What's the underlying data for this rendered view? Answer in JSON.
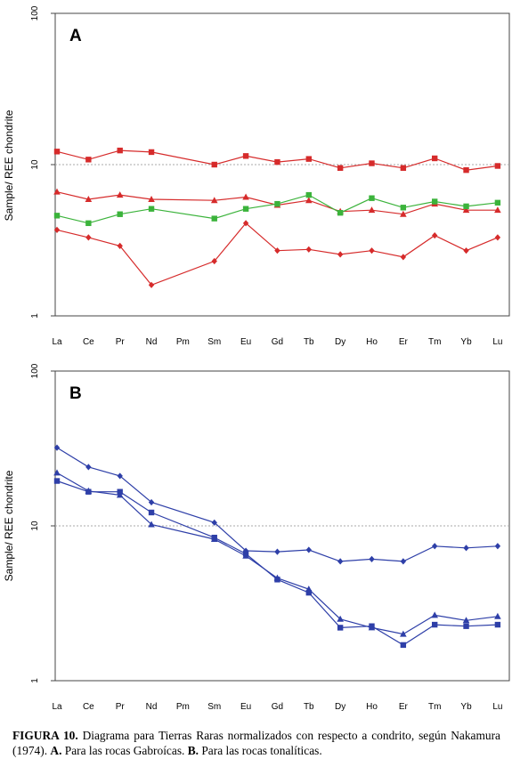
{
  "chart_data": [
    {
      "type": "line",
      "title": "A",
      "ylabel": "Sample/ REE chondrite",
      "yscale": "log",
      "ylim": [
        1,
        100
      ],
      "ytick_labels": [
        "1",
        "10",
        "100"
      ],
      "grid": "dotted line at 10",
      "categories": [
        "La",
        "Ce",
        "Pr",
        "Nd",
        "Pm",
        "Sm",
        "Eu",
        "Gd",
        "Tb",
        "Dy",
        "Ho",
        "Er",
        "Tm",
        "Yb",
        "Lu"
      ],
      "series": [
        {
          "color": "#d62b2b",
          "marker": "square",
          "values": [
            12.2,
            10.8,
            12.4,
            12.1,
            null,
            10.0,
            11.4,
            10.4,
            10.9,
            9.5,
            10.2,
            9.5,
            11.0,
            9.2,
            9.8
          ]
        },
        {
          "color": "#d62b2b",
          "marker": "triangle",
          "values": [
            6.6,
            5.9,
            6.3,
            5.9,
            null,
            5.8,
            6.1,
            5.4,
            5.8,
            4.9,
            5.0,
            4.7,
            5.5,
            5.0,
            5.0
          ]
        },
        {
          "color": "#3bb33b",
          "marker": "square",
          "values": [
            4.6,
            4.1,
            4.7,
            5.1,
            null,
            4.4,
            5.1,
            5.5,
            6.3,
            4.8,
            6.0,
            5.2,
            5.7,
            5.3,
            5.6
          ]
        },
        {
          "color": "#d62b2b",
          "marker": "diamond",
          "values": [
            3.7,
            3.3,
            2.9,
            1.6,
            null,
            2.3,
            4.1,
            2.7,
            2.75,
            2.55,
            2.7,
            2.45,
            3.4,
            2.7,
            3.3
          ]
        }
      ]
    },
    {
      "type": "line",
      "title": "B",
      "ylabel": "Sample/ REE chondrite",
      "yscale": "log",
      "ylim": [
        1,
        100
      ],
      "ytick_labels": [
        "1",
        "10",
        "100"
      ],
      "grid": "dotted line at 10",
      "categories": [
        "La",
        "Ce",
        "Pr",
        "Nd",
        "Pm",
        "Sm",
        "Eu",
        "Gd",
        "Tb",
        "Dy",
        "Ho",
        "Er",
        "Tm",
        "Yb",
        "Lu"
      ],
      "series": [
        {
          "color": "#2e3fa8",
          "marker": "diamond",
          "values": [
            32,
            24,
            21,
            14.2,
            null,
            10.5,
            6.9,
            6.8,
            7.0,
            5.9,
            6.1,
            5.9,
            7.4,
            7.2,
            7.4
          ]
        },
        {
          "color": "#2e3fa8",
          "marker": "triangle",
          "values": [
            22,
            16.8,
            15.8,
            10.2,
            null,
            8.2,
            6.4,
            4.6,
            3.9,
            2.5,
            2.2,
            2.0,
            2.65,
            2.45,
            2.6
          ]
        },
        {
          "color": "#2e3fa8",
          "marker": "square",
          "values": [
            19.5,
            16.6,
            16.6,
            12.2,
            null,
            8.4,
            6.6,
            4.5,
            3.7,
            2.2,
            2.25,
            1.7,
            2.3,
            2.25,
            2.3
          ]
        }
      ]
    }
  ],
  "caption": {
    "figure_label": "FIGURA 10.",
    "line1_text": " Diagrama para Tierras Raras normalizados con respecto a condrito, según Nakamura (1974). ",
    "part_a_label": "A.",
    "part_a_text": " Para las rocas Gabroícas. ",
    "part_b_label": "B.",
    "part_b_text": " Para las rocas tonalíticas."
  }
}
